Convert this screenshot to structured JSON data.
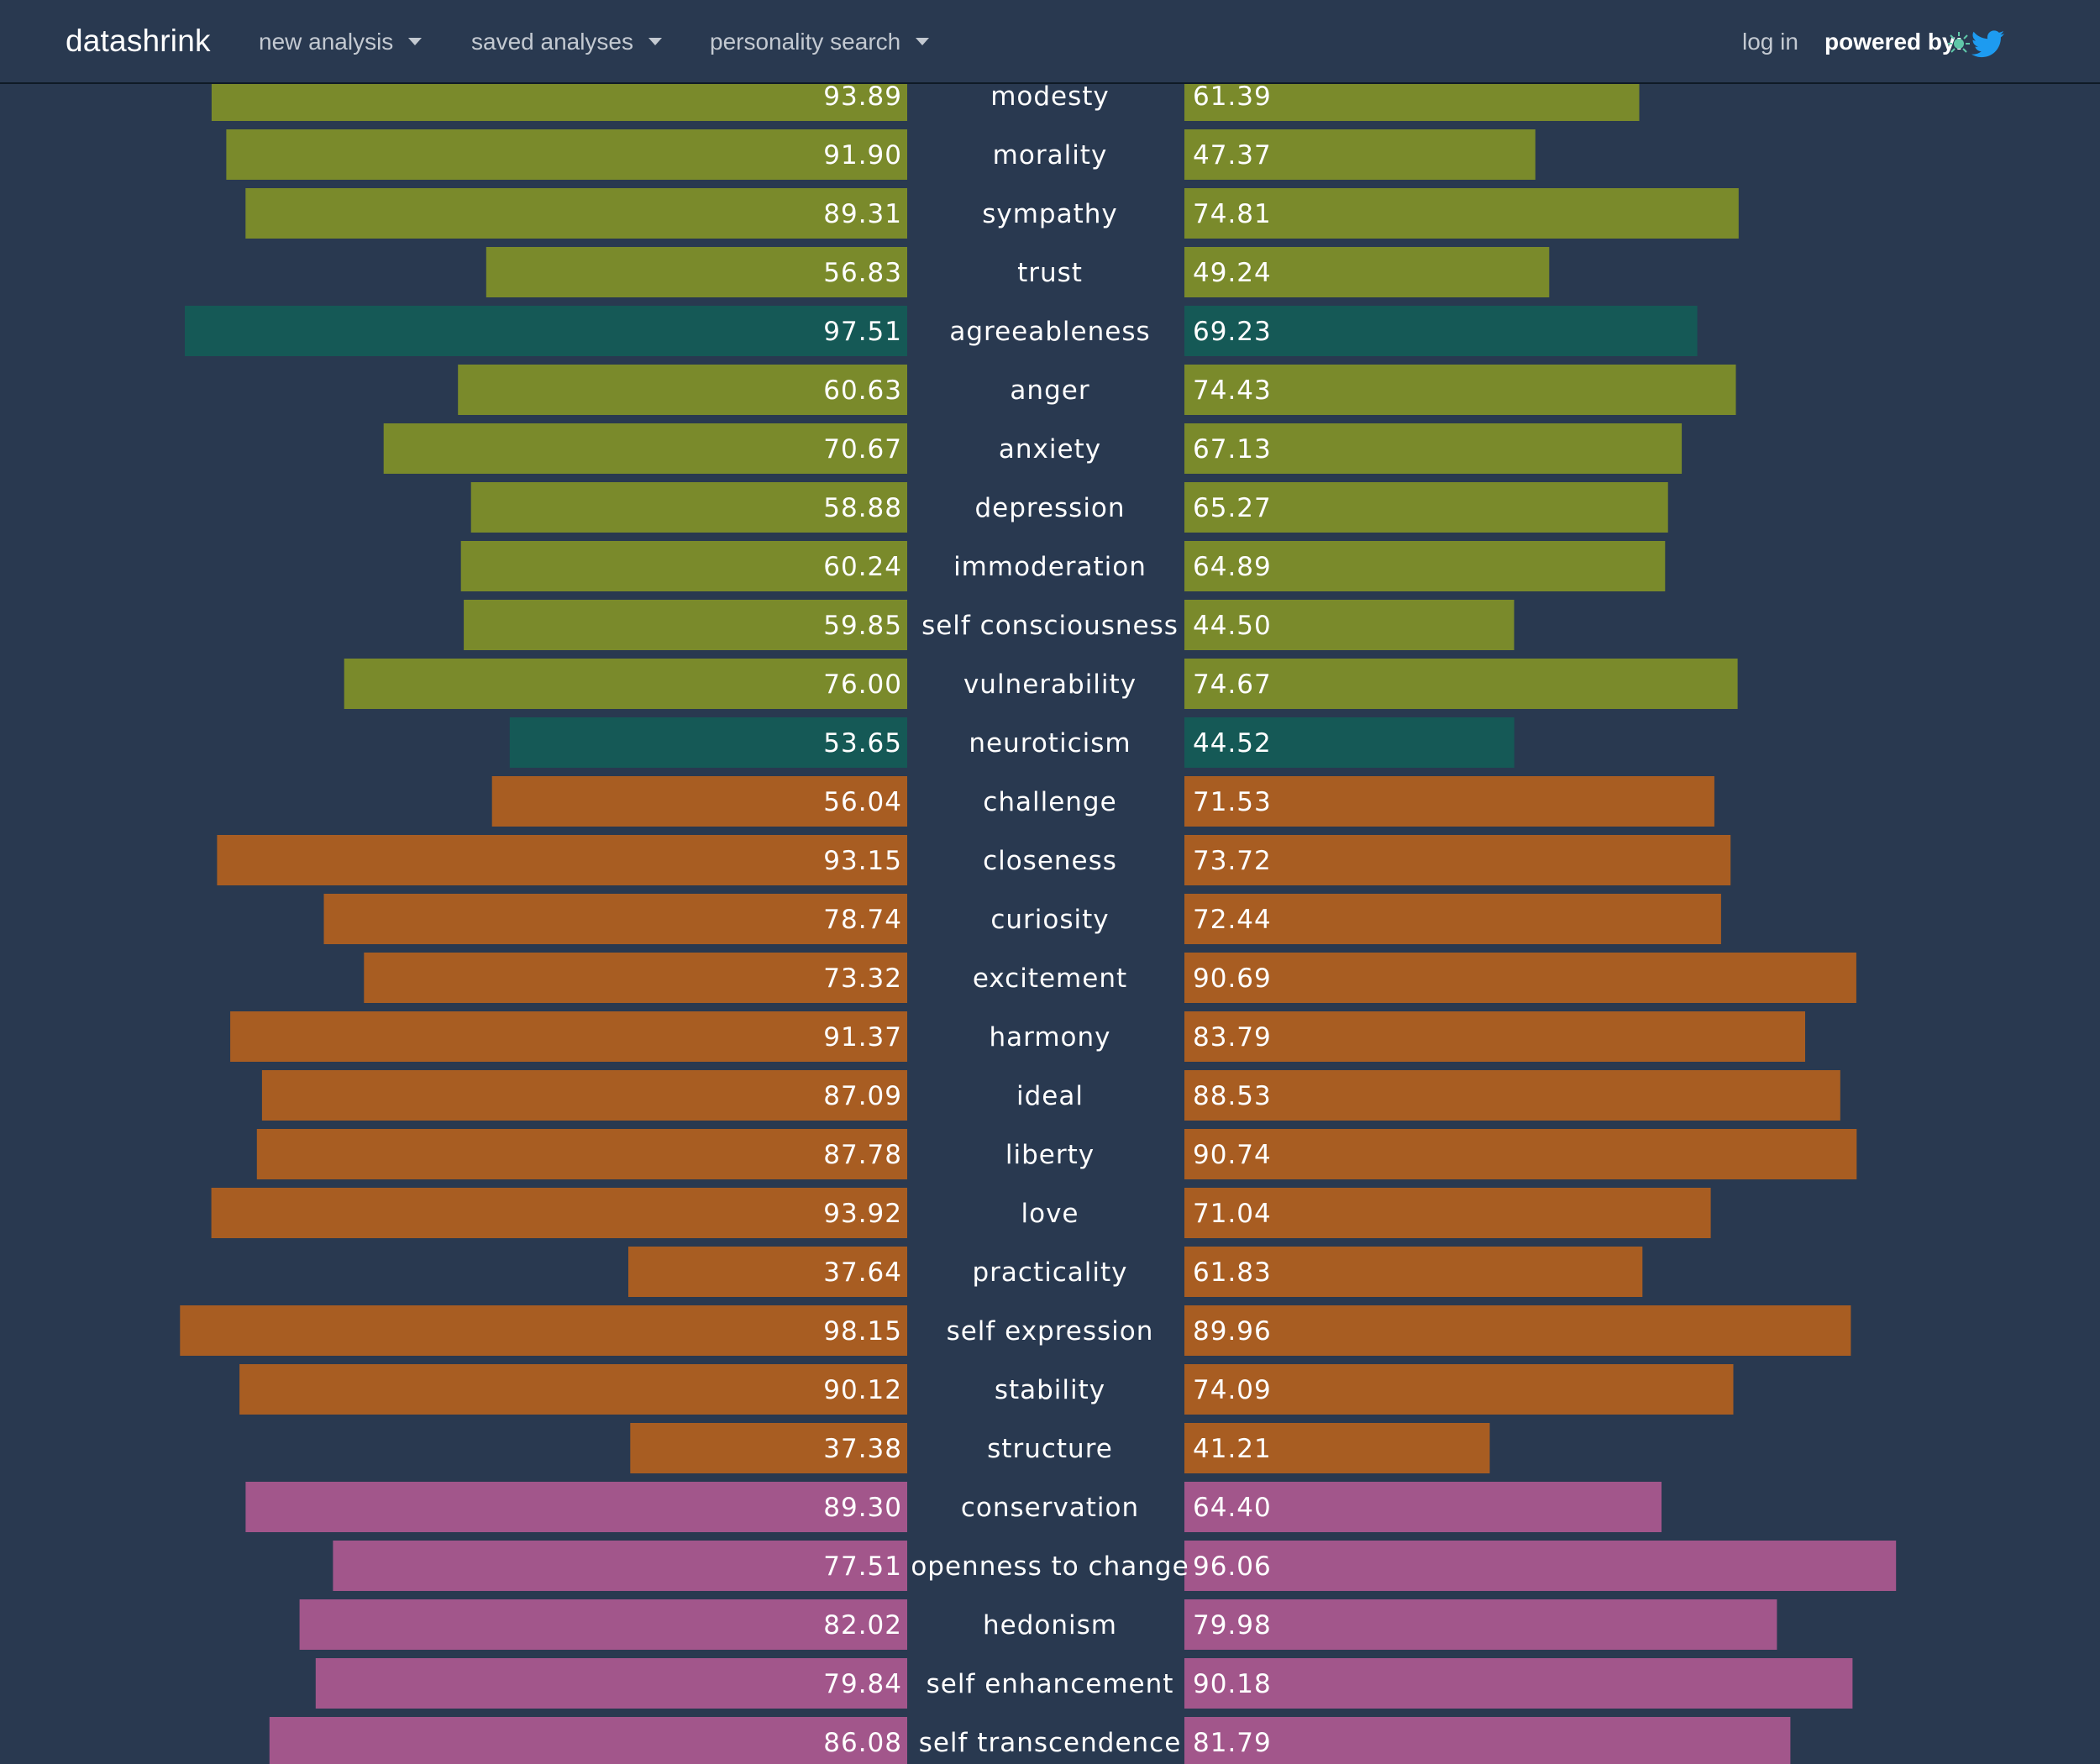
{
  "navbar": {
    "brand": "datashrink",
    "menu": [
      {
        "label": "new analysis"
      },
      {
        "label": "saved analyses"
      },
      {
        "label": "personality search"
      }
    ],
    "login": "log in",
    "powered_by": "powered by:",
    "powered_icons": [
      "ibm-watson-icon",
      "twitter-bird-icon"
    ]
  },
  "colors": {
    "background": "#293950",
    "facet": "#7a8a2b",
    "big_five": "#155956",
    "needs": "#a85d22",
    "values": "#a2568b"
  },
  "chart_data": {
    "type": "bar",
    "orientation": "horizontal-mirrored",
    "xlim": [
      0,
      100
    ],
    "categories": [
      "modesty",
      "morality",
      "sympathy",
      "trust",
      "agreeableness",
      "anger",
      "anxiety",
      "depression",
      "immoderation",
      "self consciousness",
      "vulnerability",
      "neuroticism",
      "challenge",
      "closeness",
      "curiosity",
      "excitement",
      "harmony",
      "ideal",
      "liberty",
      "love",
      "practicality",
      "self expression",
      "stability",
      "structure",
      "conservation",
      "openness to change",
      "hedonism",
      "self enhancement",
      "self transcendence"
    ],
    "groups": [
      "facet",
      "facet",
      "facet",
      "facet",
      "big_five",
      "facet",
      "facet",
      "facet",
      "facet",
      "facet",
      "facet",
      "big_five",
      "needs",
      "needs",
      "needs",
      "needs",
      "needs",
      "needs",
      "needs",
      "needs",
      "needs",
      "needs",
      "needs",
      "needs",
      "values",
      "values",
      "values",
      "values",
      "values"
    ],
    "series": [
      {
        "side": "left",
        "values": [
          93.89,
          91.9,
          89.31,
          56.83,
          97.51,
          60.63,
          70.67,
          58.88,
          60.24,
          59.85,
          76.0,
          53.65,
          56.04,
          93.15,
          78.74,
          73.32,
          91.37,
          87.09,
          87.78,
          93.92,
          37.64,
          98.15,
          90.12,
          37.38,
          89.3,
          77.51,
          82.02,
          79.84,
          86.08
        ],
        "labels": [
          "93.89",
          "91.90",
          "89.31",
          "56.83",
          "97.51",
          "60.63",
          "70.67",
          "58.88",
          "60.24",
          "59.85",
          "76.00",
          "53.65",
          "56.04",
          "93.15",
          "78.74",
          "73.32",
          "91.37",
          "87.09",
          "87.78",
          "93.92",
          "37.64",
          "98.15",
          "90.12",
          "37.38",
          "89.30",
          "77.51",
          "82.02",
          "79.84",
          "86.08"
        ]
      },
      {
        "side": "right",
        "values": [
          61.39,
          47.37,
          74.81,
          49.24,
          69.23,
          74.43,
          67.13,
          65.27,
          64.89,
          44.5,
          74.67,
          44.52,
          71.53,
          73.72,
          72.44,
          90.69,
          83.79,
          88.53,
          90.74,
          71.04,
          61.83,
          89.96,
          74.09,
          41.21,
          64.4,
          96.06,
          79.98,
          90.18,
          81.79
        ],
        "labels": [
          "61.39",
          "47.37",
          "74.81",
          "49.24",
          "69.23",
          "74.43",
          "67.13",
          "65.27",
          "64.89",
          "44.50",
          "74.67",
          "44.52",
          "71.53",
          "73.72",
          "72.44",
          "90.69",
          "83.79",
          "88.53",
          "90.74",
          "71.04",
          "61.83",
          "89.96",
          "74.09",
          "41.21",
          "64.40",
          "96.06",
          "79.98",
          "90.18",
          "81.79"
        ]
      }
    ]
  }
}
